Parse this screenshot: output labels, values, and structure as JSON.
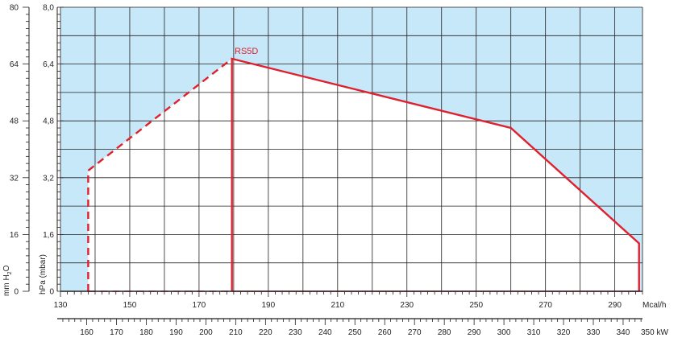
{
  "chart_data": {
    "type": "area",
    "title": "",
    "x_axis_primary": {
      "unit_label": "Mcal/h",
      "range": [
        130,
        298
      ],
      "ticks": [
        130,
        150,
        170,
        190,
        210,
        230,
        250,
        270,
        290
      ]
    },
    "x_axis_secondary": {
      "unit_label": "350 kW",
      "range": [
        151.2,
        346.5
      ],
      "ticks": [
        160,
        170,
        180,
        190,
        200,
        210,
        220,
        230,
        240,
        250,
        260,
        270,
        280,
        290,
        300,
        310,
        320,
        330,
        340
      ]
    },
    "y_axis_left": {
      "label_main": "mm H",
      "label_sub": "2",
      "label_end": "O",
      "range": [
        0,
        80
      ],
      "ticks": [
        0,
        16,
        32,
        48,
        64,
        80
      ]
    },
    "y_axis_right": {
      "label": "hPa (mbar)",
      "range": [
        0,
        8
      ],
      "ticks": [
        "0",
        "1,6",
        "3,2",
        "4,8",
        "6,4",
        "8,0"
      ]
    },
    "grid": true,
    "series": [
      {
        "name": "RS5D",
        "color": "#e0202e",
        "dashed_segments": [
          [
            [
              138,
              0
            ],
            [
              138,
              3.4
            ],
            [
              179.5,
              6.55
            ]
          ]
        ],
        "solid_segments": [
          [
            [
              179.5,
              0
            ],
            [
              179.5,
              6.55
            ],
            [
              260,
              4.6
            ],
            [
              297,
              1.35
            ],
            [
              297,
              0
            ]
          ]
        ]
      }
    ],
    "colors": {
      "outside_region": "#c6e8f8",
      "inside_region": "#ffffff",
      "curve": "#e0202e",
      "grid": "#231f20"
    }
  }
}
